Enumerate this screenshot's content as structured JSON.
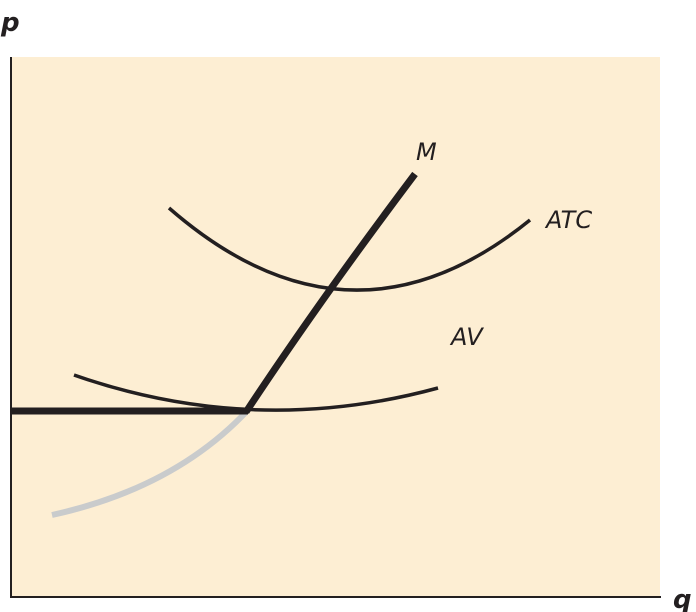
{
  "diagram": {
    "axes": {
      "y_label": "p",
      "x_label": "q"
    },
    "curves": [
      {
        "id": "marginal",
        "label": "M"
      },
      {
        "id": "atc",
        "label": "ATC"
      },
      {
        "id": "av",
        "label": "AV"
      }
    ],
    "colors": {
      "background": "#fdeed3",
      "curve": "#231f20",
      "hidden_curve": "#c9cbcc"
    }
  }
}
